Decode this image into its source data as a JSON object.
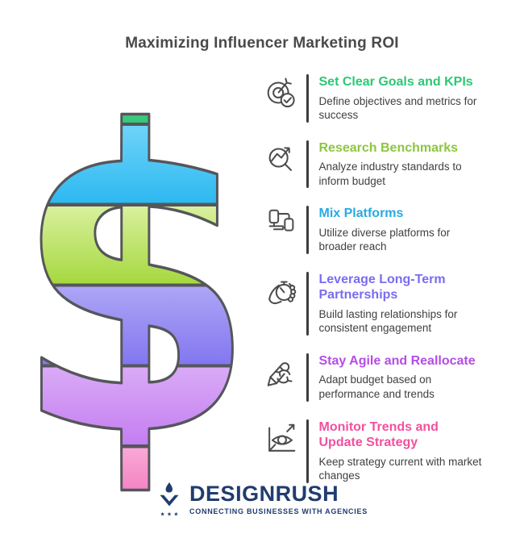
{
  "title": "Maximizing Influencer Marketing ROI",
  "title_color": "#4a4a4a",
  "icon_color": "#4c4c4c",
  "dollar_sign": {
    "symbol": "$",
    "outline_color": "#55565a",
    "bands": [
      {
        "label": "green",
        "top": "#7ce9b0",
        "bottom": "#34c878"
      },
      {
        "label": "blue",
        "top": "#6ed3f8",
        "bottom": "#2db9f1"
      },
      {
        "label": "lime",
        "top": "#d8f09e",
        "bottom": "#a6d83f"
      },
      {
        "label": "purple",
        "top": "#ada5f5",
        "bottom": "#8377f0"
      },
      {
        "label": "orchid",
        "top": "#d9aaf6",
        "bottom": "#c47ef1"
      },
      {
        "label": "pink",
        "top": "#f9a9d6",
        "bottom": "#f162b4"
      }
    ]
  },
  "steps": [
    {
      "title": "Set Clear Goals and KPIs",
      "description": "Define objectives and metrics for\nsuccess",
      "color": "#2bc873",
      "icon": "target-arrow-check-icon"
    },
    {
      "title": "Research Benchmarks",
      "description": "Analyze industry standards to\ninform budget",
      "color": "#8dc63f",
      "icon": "magnifier-trend-icon"
    },
    {
      "title": "Mix Platforms",
      "description": "Utilize diverse platforms for\nbroader reach",
      "color": "#29aae1",
      "icon": "devices-icon"
    },
    {
      "title": "Leverage Long-Term\nPartnerships",
      "description": "Build lasting relationships for\nconsistent engagement",
      "color": "#7a6cf0",
      "icon": "hand-stopwatch-icon"
    },
    {
      "title": "Stay Agile and Reallocate",
      "description": "Adapt budget based on\nperformance and trends",
      "color": "#b44de6",
      "icon": "pencil-refresh-icon"
    },
    {
      "title": "Monitor Trends and\nUpdate Strategy",
      "description": "Keep strategy current with market\nchanges",
      "color": "#f2509f",
      "icon": "eye-chart-icon"
    }
  ],
  "footer": {
    "brand": "DESIGNRUSH",
    "tagline": "CONNECTING BUSINESSES WITH AGENCIES",
    "brand_color": "#203c6f"
  }
}
